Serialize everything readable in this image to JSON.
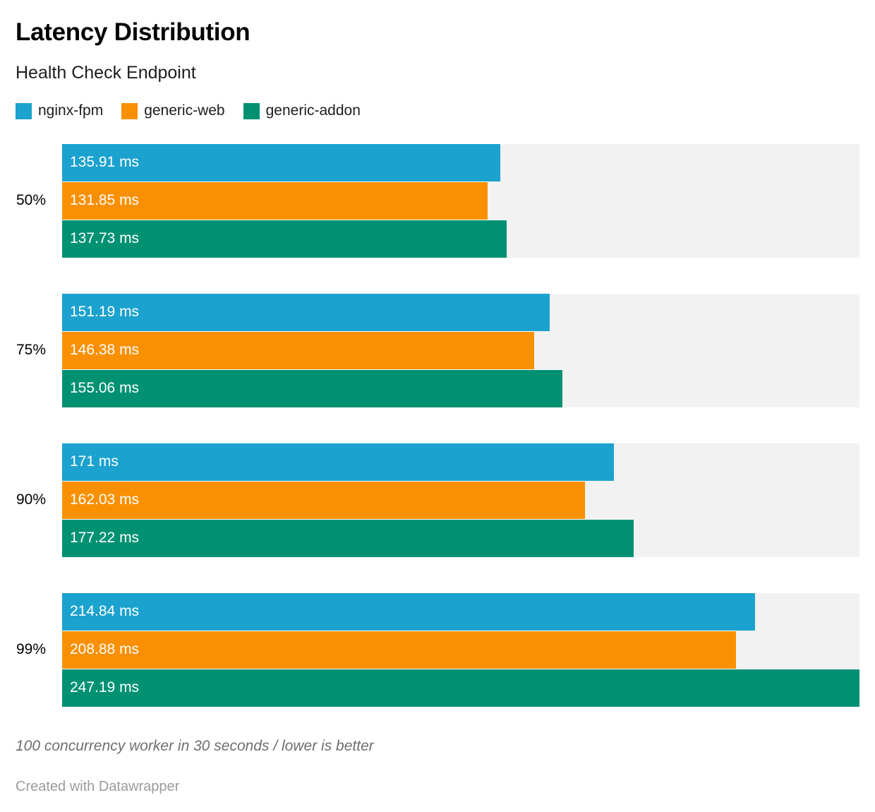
{
  "chart_data": {
    "type": "bar",
    "orientation": "horizontal",
    "title": "Latency Distribution",
    "subtitle": "Health Check Endpoint",
    "categories": [
      "50%",
      "75%",
      "90%",
      "99%"
    ],
    "series": [
      {
        "name": "nginx-fpm",
        "color": "#1CA2CE",
        "values": [
          135.91,
          151.19,
          171,
          214.84
        ],
        "labels": [
          "135.91 ms",
          "151.19 ms",
          "171 ms",
          "214.84 ms"
        ]
      },
      {
        "name": "generic-web",
        "color": "#F99002",
        "values": [
          131.85,
          146.38,
          162.03,
          208.88
        ],
        "labels": [
          "131.85 ms",
          "146.38 ms",
          "162.03 ms",
          "208.88 ms"
        ]
      },
      {
        "name": "generic-addon",
        "color": "#009173",
        "values": [
          137.73,
          155.06,
          177.22,
          247.19
        ],
        "labels": [
          "137.73 ms",
          "155.06 ms",
          "177.22 ms",
          "247.19 ms"
        ]
      }
    ],
    "xmax": 247.19,
    "unit": "ms",
    "track_color": "#f2f2f2",
    "grid": false,
    "legend_position": "top-left",
    "notes": "100 concurrency worker in 30 seconds / lower is better",
    "attribution": "Created with Datawrapper"
  }
}
